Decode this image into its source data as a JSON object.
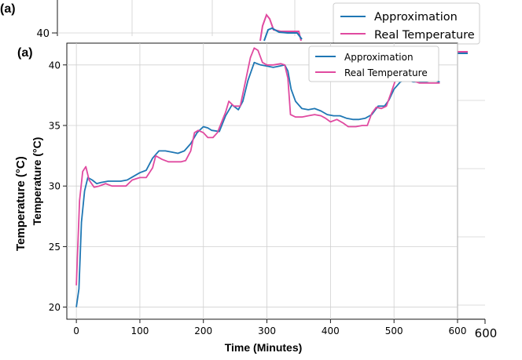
{
  "panel_label": "(a)",
  "chart_data": {
    "type": "line",
    "xlabel": "Time (Minutes)",
    "ylabel": "Temperature (°C)",
    "xlim": [
      -15,
      600
    ],
    "ylim": [
      19,
      41.8
    ],
    "xticks": [
      0,
      100,
      200,
      300,
      400,
      500,
      600
    ],
    "yticks": [
      20,
      25,
      30,
      35,
      40
    ],
    "grid": true,
    "legend_position": "top-right",
    "series": [
      {
        "name": "Approximation",
        "color": "#1f77b4",
        "points": [
          [
            0,
            20.0
          ],
          [
            4,
            21.5
          ],
          [
            8,
            27
          ],
          [
            13,
            29.6
          ],
          [
            18,
            30.7
          ],
          [
            25,
            30.5
          ],
          [
            32,
            30.2
          ],
          [
            40,
            30.3
          ],
          [
            50,
            30.4
          ],
          [
            60,
            30.4
          ],
          [
            70,
            30.4
          ],
          [
            80,
            30.5
          ],
          [
            90,
            30.8
          ],
          [
            100,
            31.1
          ],
          [
            110,
            31.3
          ],
          [
            120,
            32.3
          ],
          [
            130,
            32.9
          ],
          [
            140,
            32.9
          ],
          [
            150,
            32.8
          ],
          [
            160,
            32.7
          ],
          [
            170,
            32.9
          ],
          [
            180,
            33.5
          ],
          [
            190,
            34.4
          ],
          [
            200,
            34.9
          ],
          [
            207,
            34.8
          ],
          [
            213,
            34.6
          ],
          [
            225,
            34.5
          ],
          [
            235,
            35.8
          ],
          [
            245,
            36.7
          ],
          [
            255,
            36.3
          ],
          [
            262,
            37
          ],
          [
            270,
            38.7
          ],
          [
            280,
            40.2
          ],
          [
            290,
            40.0
          ],
          [
            300,
            39.9
          ],
          [
            310,
            39.8
          ],
          [
            320,
            39.9
          ],
          [
            328,
            40.0
          ],
          [
            333,
            39.5
          ],
          [
            338,
            38.0
          ],
          [
            345,
            37.0
          ],
          [
            355,
            36.4
          ],
          [
            365,
            36.3
          ],
          [
            375,
            36.4
          ],
          [
            385,
            36.2
          ],
          [
            395,
            35.9
          ],
          [
            405,
            35.8
          ],
          [
            415,
            35.8
          ],
          [
            425,
            35.6
          ],
          [
            435,
            35.5
          ],
          [
            445,
            35.5
          ],
          [
            455,
            35.6
          ],
          [
            465,
            35.9
          ],
          [
            475,
            36.6
          ],
          [
            485,
            36.6
          ],
          [
            492,
            37.1
          ],
          [
            500,
            38.0
          ],
          [
            510,
            38.6
          ],
          [
            520,
            38.8
          ],
          [
            530,
            38.6
          ],
          [
            540,
            38.6
          ],
          [
            550,
            38.6
          ],
          [
            560,
            38.7
          ],
          [
            572,
            38.6
          ]
        ]
      },
      {
        "name": "Real Temperature",
        "color": "#e04aa0",
        "points": [
          [
            0,
            21.8
          ],
          [
            5,
            28.8
          ],
          [
            10,
            31.2
          ],
          [
            15,
            31.6
          ],
          [
            20,
            30.5
          ],
          [
            28,
            29.9
          ],
          [
            36,
            30.0
          ],
          [
            46,
            30.2
          ],
          [
            56,
            30.0
          ],
          [
            66,
            30.0
          ],
          [
            78,
            30.0
          ],
          [
            88,
            30.5
          ],
          [
            100,
            30.7
          ],
          [
            110,
            30.7
          ],
          [
            120,
            31.5
          ],
          [
            125,
            32.5
          ],
          [
            135,
            32.2
          ],
          [
            145,
            32.0
          ],
          [
            155,
            32.0
          ],
          [
            165,
            32.0
          ],
          [
            172,
            32.1
          ],
          [
            180,
            32.9
          ],
          [
            186,
            34.4
          ],
          [
            192,
            34.6
          ],
          [
            200,
            34.4
          ],
          [
            207,
            34.0
          ],
          [
            215,
            34.0
          ],
          [
            222,
            34.4
          ],
          [
            228,
            35.2
          ],
          [
            235,
            36.1
          ],
          [
            240,
            37.0
          ],
          [
            248,
            36.6
          ],
          [
            258,
            36.6
          ],
          [
            266,
            38.6
          ],
          [
            274,
            40.6
          ],
          [
            280,
            41.4
          ],
          [
            286,
            41.2
          ],
          [
            293,
            40.2
          ],
          [
            300,
            40.0
          ],
          [
            310,
            40.0
          ],
          [
            322,
            40.1
          ],
          [
            328,
            40.0
          ],
          [
            333,
            38.9
          ],
          [
            337,
            35.9
          ],
          [
            345,
            35.7
          ],
          [
            355,
            35.7
          ],
          [
            365,
            35.8
          ],
          [
            375,
            35.9
          ],
          [
            385,
            35.8
          ],
          [
            392,
            35.6
          ],
          [
            400,
            35.3
          ],
          [
            410,
            35.5
          ],
          [
            420,
            35.2
          ],
          [
            428,
            34.9
          ],
          [
            440,
            34.9
          ],
          [
            450,
            35.0
          ],
          [
            458,
            35.0
          ],
          [
            465,
            36.0
          ],
          [
            472,
            36.5
          ],
          [
            480,
            36.4
          ],
          [
            488,
            36.6
          ],
          [
            496,
            37.8
          ],
          [
            502,
            38.7
          ],
          [
            510,
            38.8
          ],
          [
            520,
            38.8
          ],
          [
            530,
            38.7
          ],
          [
            540,
            38.5
          ],
          [
            550,
            38.5
          ],
          [
            560,
            38.5
          ],
          [
            572,
            38.5
          ]
        ]
      }
    ]
  },
  "ghost": {
    "panel_label": "(a)",
    "ylabel": "Temperature (°C)",
    "ytick": "40",
    "xtick": "600",
    "legend": [
      "Approximation",
      "Real Temperature"
    ]
  }
}
